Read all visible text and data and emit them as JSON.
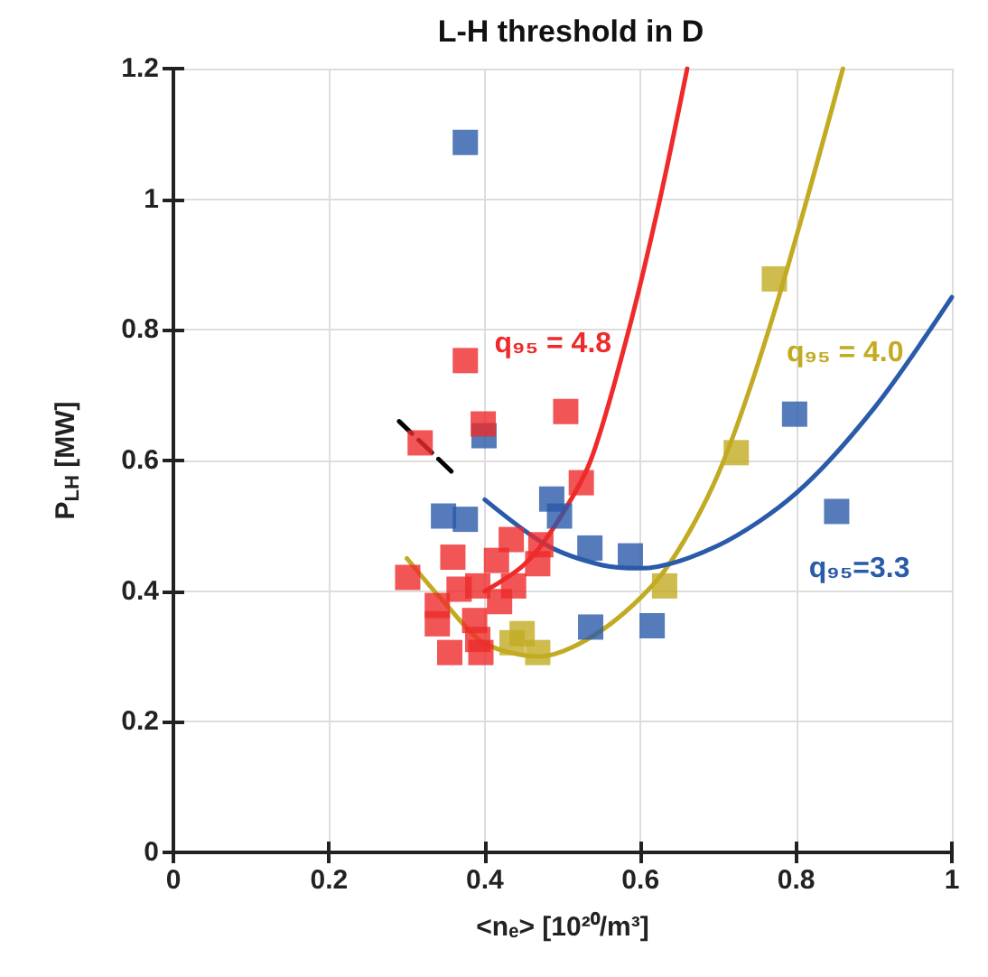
{
  "chart_data": {
    "type": "scatter",
    "title": "L-H threshold in D",
    "xlabel": "<nₑ> [10²⁰/m³]",
    "ylabel": "P$_{LH}$ [MW]",
    "xlim": [
      0,
      1
    ],
    "xticks": [
      0,
      0.2,
      0.4,
      0.6,
      0.8,
      1
    ],
    "ylim": [
      0,
      1.2
    ],
    "yticks": [
      0,
      0.2,
      0.4,
      0.6,
      0.8,
      1,
      1.2
    ],
    "grid": true,
    "marker": "square",
    "series": [
      {
        "color": "#2a5aaa",
        "x": [
          0.375,
          0.399,
          0.347,
          0.375,
          0.486,
          0.496,
          0.535,
          0.587,
          0.536,
          0.615,
          0.798,
          0.852
        ],
        "values": [
          1.087,
          0.638,
          0.515,
          0.51,
          0.541,
          0.515,
          0.466,
          0.454,
          0.345,
          0.347,
          0.671,
          0.522
        ]
      },
      {
        "color": "#c2ab22",
        "x": [
          0.772,
          0.723,
          0.631,
          0.448,
          0.435,
          0.468
        ],
        "values": [
          0.878,
          0.612,
          0.408,
          0.335,
          0.321,
          0.306
        ]
      },
      {
        "color": "#ee2a2a",
        "x": [
          0.301,
          0.317,
          0.375,
          0.398,
          0.504,
          0.524,
          0.472,
          0.468,
          0.434,
          0.415,
          0.437,
          0.359,
          0.367,
          0.391,
          0.419,
          0.339,
          0.339,
          0.387,
          0.391,
          0.395,
          0.355
        ],
        "values": [
          0.421,
          0.627,
          0.753,
          0.656,
          0.675,
          0.566,
          0.471,
          0.442,
          0.479,
          0.447,
          0.408,
          0.452,
          0.403,
          0.408,
          0.384,
          0.378,
          0.35,
          0.355,
          0.326,
          0.306,
          0.306
        ]
      },
      {
        "type": "line",
        "name": "q₉₅ = 4.8",
        "marker": "none",
        "color": "#ee2a2a",
        "x": [
          0.4,
          0.45,
          0.49,
          0.536,
          0.585,
          0.625,
          0.66
        ],
        "values": [
          0.4,
          0.44,
          0.5,
          0.6,
          0.8,
          1.0,
          1.2
        ]
      },
      {
        "type": "line",
        "name": "q₉₅ = 4.0",
        "marker": "none",
        "color": "#c2ab22",
        "x": [
          0.3,
          0.35,
          0.4,
          0.47,
          0.55,
          0.63,
          0.7,
          0.77,
          0.86
        ],
        "values": [
          0.45,
          0.38,
          0.32,
          0.3,
          0.34,
          0.43,
          0.58,
          0.82,
          1.2
        ]
      },
      {
        "type": "line",
        "name": "q₉₅=3.3",
        "marker": "none",
        "color": "#2a5aaa",
        "x": [
          0.4,
          0.48,
          0.55,
          0.6,
          0.7,
          0.8,
          0.9,
          1.0
        ],
        "values": [
          0.54,
          0.47,
          0.44,
          0.435,
          0.47,
          0.55,
          0.68,
          0.85
        ]
      },
      {
        "type": "line",
        "marker": "none",
        "color": "#000000",
        "line_style": "dashed",
        "x": [
          0.29,
          0.36
        ],
        "values": [
          0.66,
          0.58
        ]
      }
    ]
  }
}
